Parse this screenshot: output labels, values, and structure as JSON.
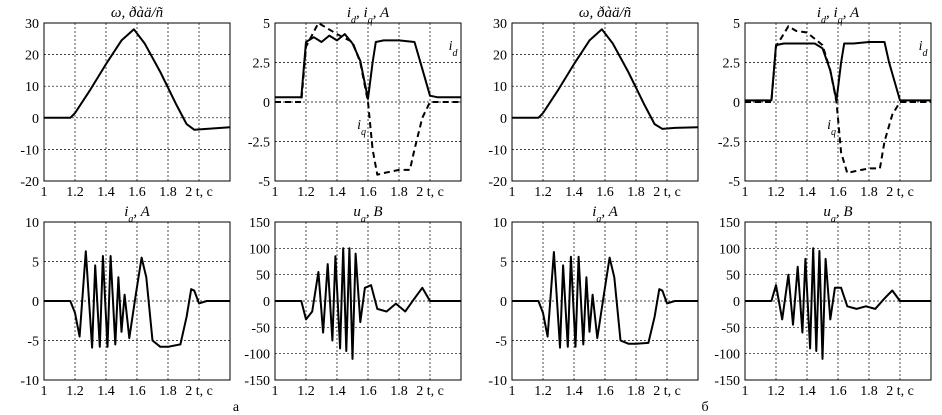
{
  "captions": [
    "а",
    "б"
  ],
  "chart_data": [
    {
      "id": "a-omega",
      "type": "line",
      "title": "ω, ðàä/ñ",
      "xlim": [
        1,
        2.2
      ],
      "ylim": [
        -20,
        30
      ],
      "x_ticks": [
        "1",
        "1.2",
        "1.4",
        "1.6",
        "1.8",
        "2 t, c"
      ],
      "y_ticks": [
        "-20",
        "-10",
        "0",
        "10",
        "20",
        "30"
      ],
      "grid": true,
      "series": [
        {
          "style": "solid",
          "x": [
            1.0,
            1.17,
            1.2,
            1.3,
            1.4,
            1.5,
            1.58,
            1.65,
            1.75,
            1.85,
            1.92,
            1.97,
            2.05,
            2.2
          ],
          "y": [
            0,
            0,
            1.5,
            9,
            17,
            24.5,
            28,
            23.5,
            14.5,
            4.5,
            -2,
            -3.8,
            -3.5,
            -3
          ]
        }
      ]
    },
    {
      "id": "a-idq",
      "type": "line",
      "title": "i_d, i_q, A",
      "xlim": [
        1,
        2.2
      ],
      "ylim": [
        -5,
        5
      ],
      "x_ticks": [
        "1",
        "1.2",
        "1.4",
        "1.6",
        "1.8",
        "2 t, c"
      ],
      "y_ticks": [
        "-5",
        "-2.5",
        "0",
        "2.5",
        "5"
      ],
      "grid": true,
      "annotations": [
        {
          "text": "i_d",
          "x": 2.12,
          "y": 3.3
        },
        {
          "text": "i_q",
          "x": 1.53,
          "y": -1.7
        }
      ],
      "series": [
        {
          "name": "i_d",
          "style": "solid",
          "x": [
            1.0,
            1.17,
            1.2,
            1.25,
            1.3,
            1.35,
            1.4,
            1.45,
            1.5,
            1.55,
            1.6,
            1.63,
            1.65,
            1.7,
            1.8,
            1.9,
            1.93,
            2.0,
            2.05,
            2.2
          ],
          "y": [
            0.3,
            0.3,
            3.8,
            4.1,
            3.8,
            4.2,
            3.9,
            4.3,
            3.7,
            2.6,
            0.2,
            2.5,
            3.8,
            3.9,
            3.9,
            3.8,
            2.8,
            0.4,
            0.3,
            0.3
          ]
        },
        {
          "name": "i_q",
          "style": "dashed",
          "x": [
            1.0,
            1.17,
            1.2,
            1.28,
            1.4,
            1.5,
            1.55,
            1.6,
            1.63,
            1.66,
            1.7,
            1.8,
            1.87,
            1.9,
            1.95,
            2.0,
            2.05,
            2.2
          ],
          "y": [
            0,
            0,
            3.5,
            5.0,
            4.3,
            3.8,
            2.5,
            0,
            -3.0,
            -4.6,
            -4.5,
            -4.3,
            -4.3,
            -3.0,
            -1.0,
            0,
            0,
            0
          ]
        }
      ]
    },
    {
      "id": "a-ia",
      "type": "line",
      "title": "i_a, A",
      "xlim": [
        1,
        2.2
      ],
      "ylim": [
        -10,
        10
      ],
      "x_ticks": [
        "1",
        "1.2",
        "1.4",
        "1.6",
        "1.8",
        "2 t, c"
      ],
      "y_ticks": [
        "-10",
        "-5",
        "0",
        "5",
        "10"
      ],
      "grid": true,
      "series": [
        {
          "style": "solid",
          "x": [
            1.0,
            1.17,
            1.2,
            1.23,
            1.27,
            1.31,
            1.33,
            1.36,
            1.38,
            1.41,
            1.43,
            1.46,
            1.48,
            1.5,
            1.52,
            1.55,
            1.59,
            1.63,
            1.66,
            1.7,
            1.75,
            1.8,
            1.88,
            1.92,
            1.95,
            1.97,
            2.0,
            2.05,
            2.2
          ],
          "y": [
            0,
            0,
            -1.5,
            -4.5,
            6.3,
            -5.9,
            4.5,
            -5.8,
            5.7,
            -5.8,
            5.7,
            -5.5,
            3.0,
            -3.9,
            0.8,
            -4.7,
            0.5,
            5.5,
            3.0,
            -5.0,
            -5.8,
            -5.8,
            -5.5,
            -2.0,
            1.5,
            1.3,
            -0.3,
            0,
            0
          ]
        }
      ]
    },
    {
      "id": "a-ua",
      "type": "line",
      "title": "u_a, B",
      "xlim": [
        1,
        2.2
      ],
      "ylim": [
        -150,
        150
      ],
      "x_ticks": [
        "1",
        "1.2",
        "1.4",
        "1.6",
        "1.8",
        "2 t, c"
      ],
      "y_ticks": [
        "-150",
        "-100",
        "-50",
        "0",
        "50",
        "100",
        "150"
      ],
      "grid": true,
      "series": [
        {
          "style": "solid",
          "x": [
            1.0,
            1.17,
            1.2,
            1.24,
            1.28,
            1.31,
            1.34,
            1.37,
            1.39,
            1.42,
            1.44,
            1.46,
            1.48,
            1.5,
            1.52,
            1.55,
            1.58,
            1.62,
            1.66,
            1.72,
            1.78,
            1.84,
            1.9,
            1.95,
            2.0,
            2.05,
            2.2
          ],
          "y": [
            0,
            0,
            -35,
            -20,
            55,
            -60,
            70,
            -75,
            85,
            -90,
            100,
            -95,
            100,
            -110,
            90,
            -40,
            25,
            30,
            -15,
            -20,
            -5,
            -20,
            5,
            25,
            0,
            0,
            0
          ]
        }
      ]
    },
    {
      "id": "b-omega",
      "type": "line",
      "title": "ω, ðàä/ñ",
      "xlim": [
        1,
        2.2
      ],
      "ylim": [
        -20,
        30
      ],
      "x_ticks": [
        "1",
        "1.2",
        "1.4",
        "1.6",
        "1.8",
        "2 t, c"
      ],
      "y_ticks": [
        "-20",
        "-10",
        "0",
        "10",
        "20",
        "30"
      ],
      "grid": true,
      "series": [
        {
          "style": "solid",
          "x": [
            1.0,
            1.17,
            1.2,
            1.3,
            1.4,
            1.5,
            1.58,
            1.65,
            1.75,
            1.85,
            1.92,
            1.97,
            2.05,
            2.2
          ],
          "y": [
            0,
            0,
            1.5,
            9,
            17,
            24.5,
            28,
            23.5,
            14.5,
            4.5,
            -2,
            -3.5,
            -3.2,
            -3
          ]
        }
      ]
    },
    {
      "id": "b-idq",
      "type": "line",
      "title": "i_d, i_q, A",
      "xlim": [
        1,
        2.2
      ],
      "ylim": [
        -5,
        5
      ],
      "x_ticks": [
        "1",
        "1.2",
        "1.4",
        "1.6",
        "1.8",
        "2 t, c"
      ],
      "y_ticks": [
        "-5",
        "-2.5",
        "0",
        "2.5",
        "5"
      ],
      "grid": true,
      "annotations": [
        {
          "text": "i_d",
          "x": 2.12,
          "y": 3.3
        },
        {
          "text": "i_q",
          "x": 1.53,
          "y": -1.7
        }
      ],
      "series": [
        {
          "name": "i_d",
          "style": "solid",
          "x": [
            1.0,
            1.17,
            1.2,
            1.25,
            1.35,
            1.45,
            1.5,
            1.55,
            1.59,
            1.62,
            1.64,
            1.7,
            1.8,
            1.9,
            1.93,
            2.0,
            2.05,
            2.2
          ],
          "y": [
            0.1,
            0.1,
            3.6,
            3.7,
            3.7,
            3.7,
            3.4,
            2.0,
            0.1,
            2.5,
            3.7,
            3.7,
            3.8,
            3.8,
            2.5,
            0.1,
            0.1,
            0.1
          ]
        },
        {
          "name": "i_q",
          "style": "dashed",
          "x": [
            1.0,
            1.17,
            1.2,
            1.28,
            1.33,
            1.4,
            1.5,
            1.55,
            1.59,
            1.62,
            1.66,
            1.7,
            1.8,
            1.87,
            1.9,
            1.95,
            2.0,
            2.05,
            2.2
          ],
          "y": [
            0,
            0,
            3.5,
            4.8,
            4.5,
            4.4,
            3.6,
            2.0,
            0,
            -3.2,
            -4.5,
            -4.4,
            -4.2,
            -4.2,
            -2.5,
            -0.8,
            0,
            0,
            0
          ]
        }
      ]
    },
    {
      "id": "b-ia",
      "type": "line",
      "title": "i_a, A",
      "xlim": [
        1,
        2.2
      ],
      "ylim": [
        -10,
        10
      ],
      "x_ticks": [
        "1",
        "1.2",
        "1.4",
        "1.6",
        "1.8",
        "2 t, c"
      ],
      "y_ticks": [
        "-10",
        "-5",
        "0",
        "5",
        "10"
      ],
      "grid": true,
      "series": [
        {
          "style": "solid",
          "x": [
            1.0,
            1.17,
            1.2,
            1.23,
            1.27,
            1.31,
            1.33,
            1.36,
            1.38,
            1.41,
            1.43,
            1.46,
            1.48,
            1.5,
            1.52,
            1.55,
            1.59,
            1.63,
            1.66,
            1.7,
            1.75,
            1.8,
            1.88,
            1.92,
            1.95,
            1.97,
            2.0,
            2.05,
            2.2
          ],
          "y": [
            0,
            0,
            -1.5,
            -4.5,
            6.2,
            -5.9,
            4.5,
            -5.8,
            5.6,
            -5.8,
            5.6,
            -5.5,
            3.0,
            -3.9,
            0.8,
            -4.7,
            0.5,
            5.5,
            3.0,
            -5.0,
            -5.4,
            -5.4,
            -5.3,
            -2.0,
            1.5,
            1.3,
            -0.3,
            0,
            0
          ]
        }
      ]
    },
    {
      "id": "b-ua",
      "type": "line",
      "title": "u_a, B",
      "xlim": [
        1,
        2.2
      ],
      "ylim": [
        -150,
        150
      ],
      "x_ticks": [
        "1",
        "1.2",
        "1.4",
        "1.6",
        "1.8",
        "2 t, c"
      ],
      "y_ticks": [
        "-150",
        "-100",
        "-50",
        "0",
        "50",
        "100",
        "150"
      ],
      "grid": true,
      "series": [
        {
          "style": "solid",
          "x": [
            1.0,
            1.17,
            1.2,
            1.24,
            1.28,
            1.31,
            1.34,
            1.37,
            1.39,
            1.42,
            1.44,
            1.46,
            1.48,
            1.5,
            1.52,
            1.55,
            1.58,
            1.62,
            1.66,
            1.72,
            1.78,
            1.84,
            1.9,
            1.95,
            2.0,
            2.05,
            2.2
          ],
          "y": [
            0,
            0,
            30,
            -35,
            50,
            -45,
            65,
            -60,
            80,
            -90,
            100,
            -95,
            95,
            -110,
            80,
            -35,
            25,
            25,
            -10,
            -15,
            -10,
            -15,
            5,
            20,
            0,
            0,
            0
          ]
        }
      ]
    }
  ]
}
